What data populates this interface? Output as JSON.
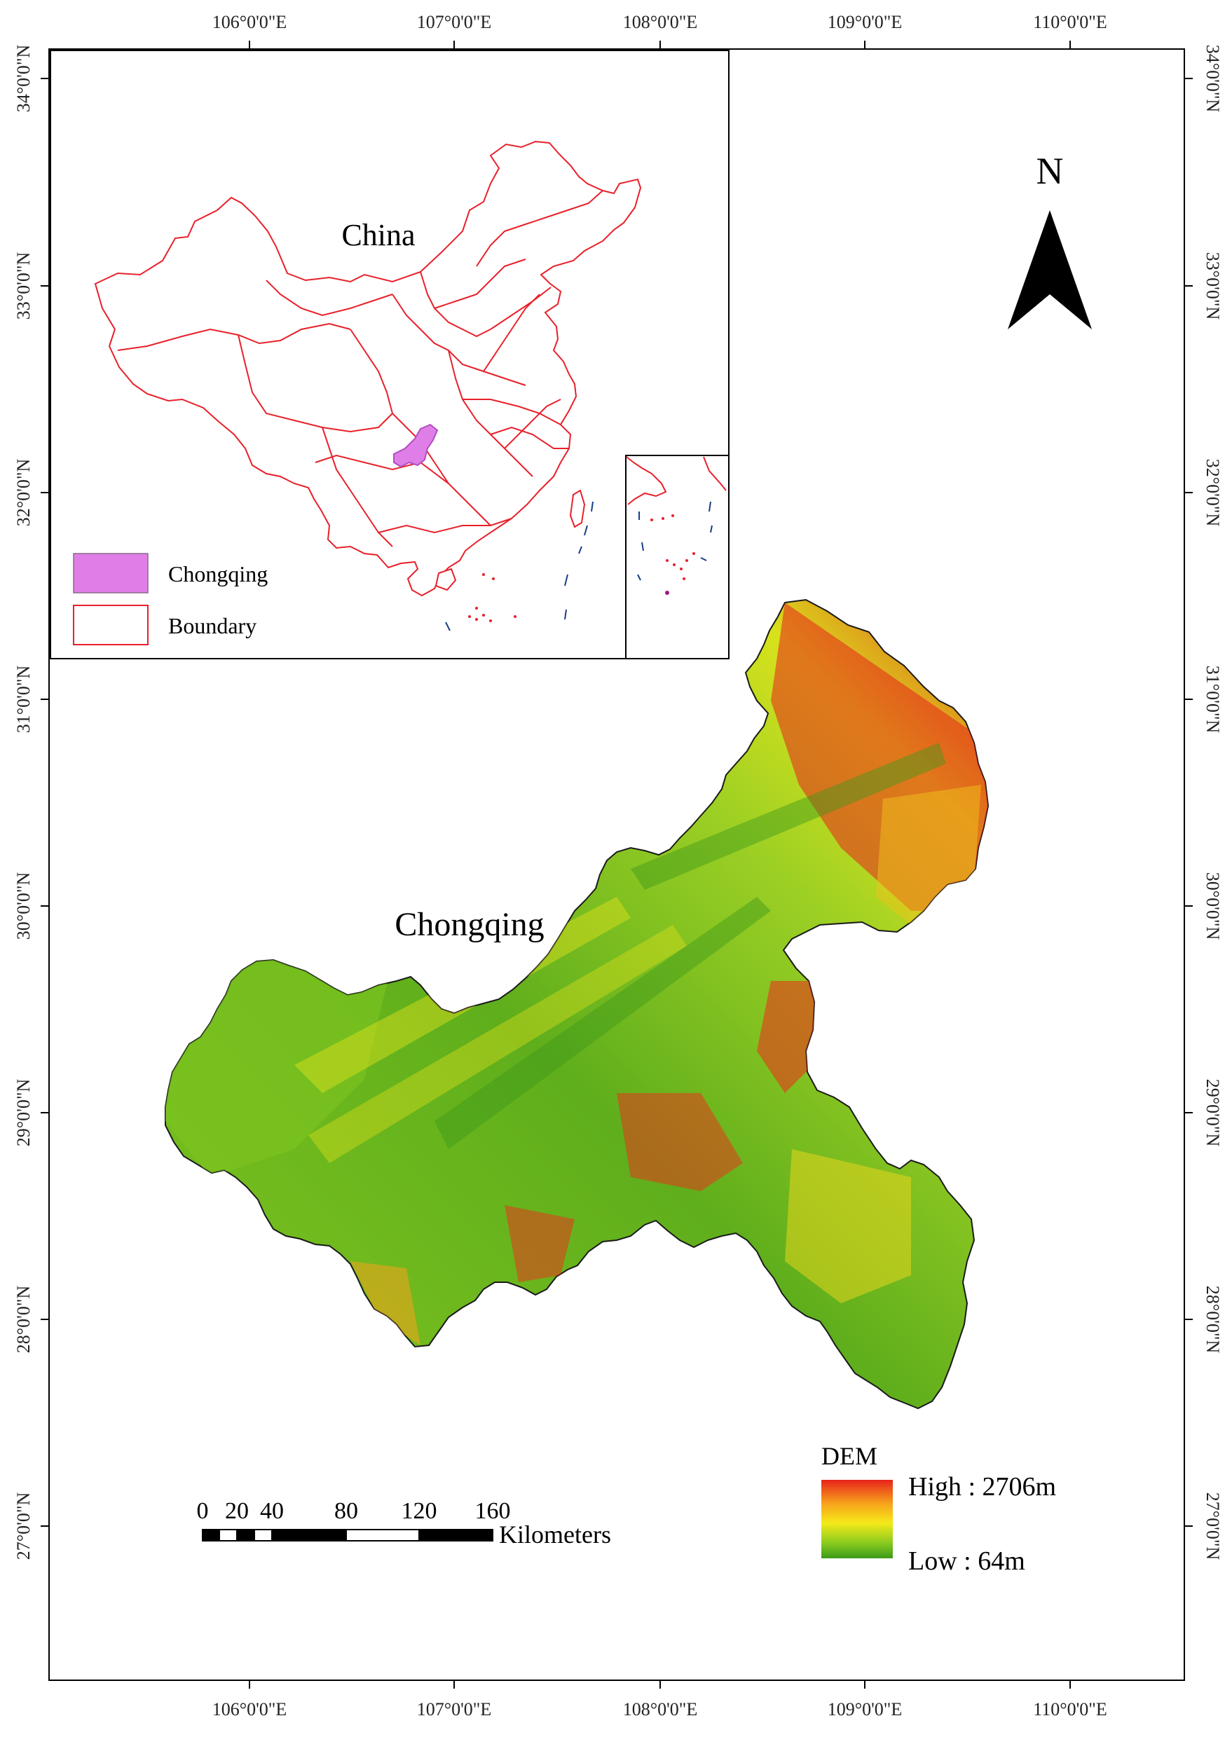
{
  "map": {
    "top_ticks": [
      "106°0'0\"E",
      "107°0'0\"E",
      "108°0'0\"E",
      "109°0'0\"E",
      "110°0'0\"E"
    ],
    "bottom_ticks": [
      "106°0'0\"E",
      "107°0'0\"E",
      "108°0'0\"E",
      "109°0'0\"E",
      "110°0'0\"E"
    ],
    "left_ticks": [
      "34°0'0\"N",
      "33°0'0\"N",
      "32°0'0\"N",
      "31°0'0\"N",
      "30°0'0\"N",
      "29°0'0\"N",
      "28°0'0\"N",
      "27°0'0\"N"
    ],
    "right_ticks": [
      "34°0'0\"N",
      "33°0'0\"N",
      "32°0'0\"N",
      "31°0'0\"N",
      "30°0'0\"N",
      "29°0'0\"N",
      "28°0'0\"N",
      "27°0'0\"N"
    ],
    "region_label": "Chongqing",
    "north_label": "N"
  },
  "inset": {
    "title": "China",
    "legend": [
      {
        "label": "Chongqing",
        "color": "#e07ee8"
      },
      {
        "label": "Boundary",
        "color": "#e8202a"
      }
    ]
  },
  "scale_bar": {
    "labels": [
      "0",
      "20",
      "40",
      "80",
      "120",
      "160"
    ],
    "unit": "Kilometers"
  },
  "dem_legend": {
    "title": "DEM",
    "high_label": "High : 2706m",
    "low_label": "Low : 64m",
    "colors": [
      "#e8231b",
      "#f7a21b",
      "#f5ea1a",
      "#7fc41f",
      "#3a9a1a"
    ]
  }
}
